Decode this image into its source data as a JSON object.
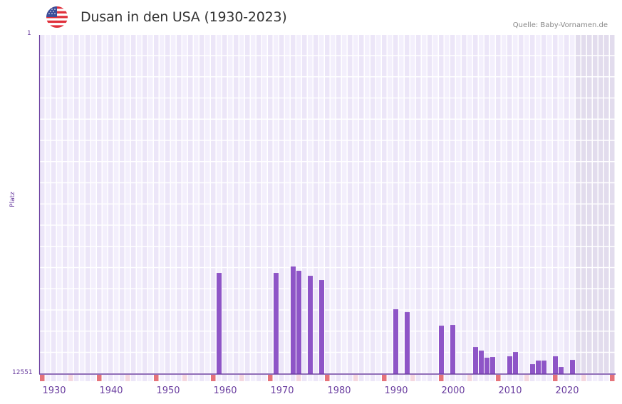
{
  "header": {
    "title": "Dusan in den USA (1930-2023)",
    "source": "Quelle: Baby-Vornamen.de",
    "flag_icon": "us-flag-icon"
  },
  "colors": {
    "bar": "#8e55c7",
    "axis": "#6b3fa0",
    "grid_bg_a": "#f3effc",
    "grid_bg_b": "#ece6f8",
    "future_bg": "#e2dced",
    "decade_marker": "#e5737a",
    "half_decade_marker": "#f5d7df"
  },
  "chart_data": {
    "type": "bar",
    "title": "Dusan in den USA (1930-2023)",
    "xlabel": "",
    "ylabel": "Platz",
    "y_axis_inverted": true,
    "ylim": [
      12551,
      1
    ],
    "y_ticks": [
      "1",
      "12551"
    ],
    "x_range": [
      1928,
      2028
    ],
    "x_ticks": [
      1930,
      1940,
      1950,
      1960,
      1970,
      1980,
      1990,
      2000,
      2010,
      2020
    ],
    "grid": true,
    "shaded_future_from": 2022,
    "categories": [
      1959,
      1969,
      1972,
      1973,
      1975,
      1977,
      1990,
      1992,
      1998,
      2000,
      2004,
      2005,
      2006,
      2007,
      2010,
      2011,
      2014,
      2015,
      2016,
      2018,
      2019,
      2021
    ],
    "values": [
      8808,
      8808,
      8571,
      8729,
      8914,
      9072,
      10153,
      10259,
      10760,
      10733,
      11551,
      11683,
      11946,
      11920,
      11894,
      11736,
      12184,
      12052,
      12052,
      11894,
      12289,
      12026
    ]
  },
  "axis": {
    "y_top_label": "1",
    "y_bottom_label": "12551",
    "y_title": "Platz",
    "x_labels": [
      "1930",
      "1940",
      "1950",
      "1960",
      "1970",
      "1980",
      "1990",
      "2000",
      "2010",
      "2020"
    ]
  }
}
